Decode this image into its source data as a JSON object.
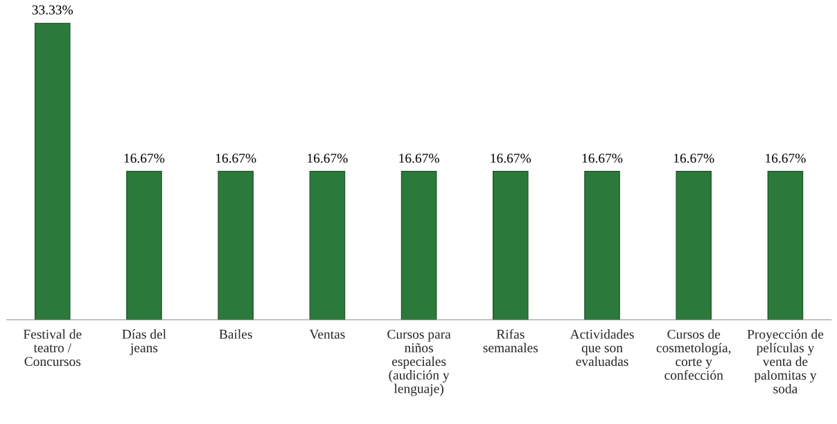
{
  "chart_data": {
    "type": "bar",
    "categories": [
      "Festival de teatro / Concursos",
      "Días del jeans",
      "Bailes",
      "Ventas",
      "Cursos para niños especiales (audición y lenguaje)",
      "Rifas semanales",
      "Actividades que son evaluadas",
      "Cursos de cosmetología, corte y confección",
      "Proyección de películas y venta de palomitas y soda"
    ],
    "values": [
      33.33,
      16.67,
      16.67,
      16.67,
      16.67,
      16.67,
      16.67,
      16.67,
      16.67
    ],
    "value_labels": [
      "33.33%",
      "16.67%",
      "16.67%",
      "16.67%",
      "16.67%",
      "16.67%",
      "16.67%",
      "16.67%",
      "16.67%"
    ],
    "color": "#2b7a3b",
    "grid": false,
    "legend": false
  }
}
